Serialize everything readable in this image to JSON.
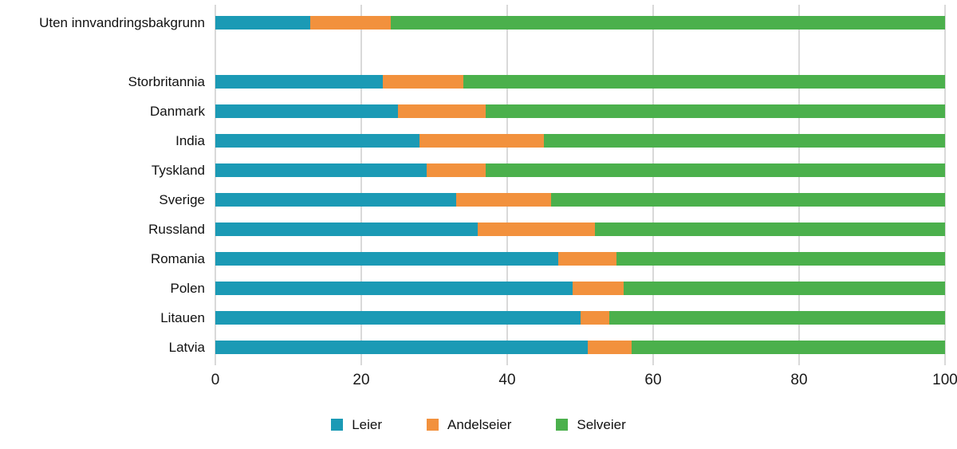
{
  "chart_data": {
    "type": "bar",
    "orientation": "horizontal",
    "stacked": true,
    "title": "",
    "xlabel": "",
    "ylabel": "",
    "xlim": [
      0,
      100
    ],
    "xticks": [
      0,
      20,
      40,
      60,
      80,
      100
    ],
    "grid": "vertical",
    "legend_position": "bottom",
    "categories": [
      "Uten innvandringsbakgrunn",
      "Storbritannia",
      "Danmark",
      "India",
      "Tyskland",
      "Sverige",
      "Russland",
      "Romania",
      "Polen",
      "Litauen",
      "Latvia"
    ],
    "gap_after_first": true,
    "series": [
      {
        "name": "Leier",
        "color": "#1b9ab5",
        "values": [
          13,
          23,
          25,
          28,
          29,
          33,
          36,
          47,
          49,
          50,
          51
        ]
      },
      {
        "name": "Andelseier",
        "color": "#f2913d",
        "values": [
          11,
          11,
          12,
          17,
          8,
          13,
          16,
          8,
          7,
          4,
          6
        ]
      },
      {
        "name": "Selveier",
        "color": "#4bb04c",
        "values": [
          76,
          66,
          63,
          55,
          63,
          54,
          48,
          45,
          44,
          46,
          43
        ]
      }
    ],
    "colors": {
      "gridline": "#b3b3b3",
      "text": "#1a1a1a",
      "background": "#ffffff"
    }
  }
}
